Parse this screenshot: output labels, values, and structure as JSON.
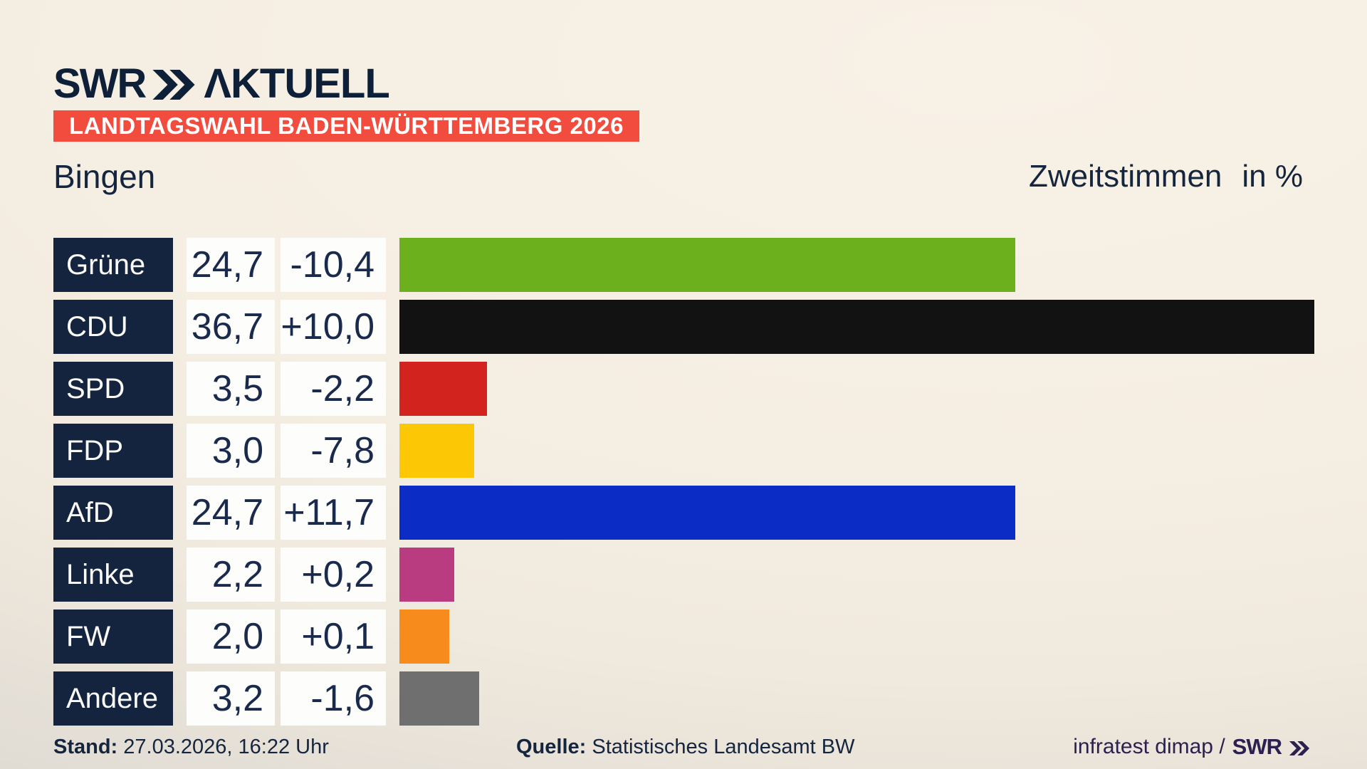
{
  "brand": {
    "logo_swr": "SWR",
    "logo_aktuell": "ΛKTUELL",
    "logo_color": "#0e2038"
  },
  "header": {
    "banner": "LANDTAGSWAHL BADEN-WÜRTTEMBERG 2026",
    "banner_color": "#f24c3e",
    "municipality": "Bingen",
    "measure": "Zweitstimmen",
    "unit": "in %"
  },
  "chart_data": {
    "type": "bar",
    "title": "Zweitstimmen in %",
    "orientation": "horizontal",
    "axis": "none",
    "xlim": [
      0,
      36.7
    ],
    "categories": [
      "Grüne",
      "CDU",
      "SPD",
      "FDP",
      "AfD",
      "Linke",
      "FW",
      "Andere"
    ],
    "values": [
      24.7,
      36.7,
      3.5,
      3.0,
      24.7,
      2.2,
      2.0,
      3.2
    ],
    "value_labels": [
      "24,7",
      "36,7",
      "3,5",
      "3,0",
      "24,7",
      "2,2",
      "2,0",
      "3,2"
    ],
    "change_labels": [
      "-10,4",
      "+10,0",
      "-2,2",
      "-7,8",
      "+11,7",
      "+0,2",
      "+0,1",
      "-1,6"
    ],
    "colors": [
      "#6cb11d",
      "#121212",
      "#d2231f",
      "#fcc704",
      "#0b2cc5",
      "#ba3c80",
      "#f78c1c",
      "#6f6f6f"
    ],
    "label_box_color": "#14243e",
    "value_box_color": "#fdfdfc",
    "legend": "none",
    "grid": false
  },
  "footer": {
    "stand_label": "Stand:",
    "stand_value": "27.03.2026, 16:22 Uhr",
    "source_label": "Quelle:",
    "source_value": "Statistisches Landesamt BW",
    "credit_text": "infratest dimap /",
    "credit_brand": "SWR"
  }
}
